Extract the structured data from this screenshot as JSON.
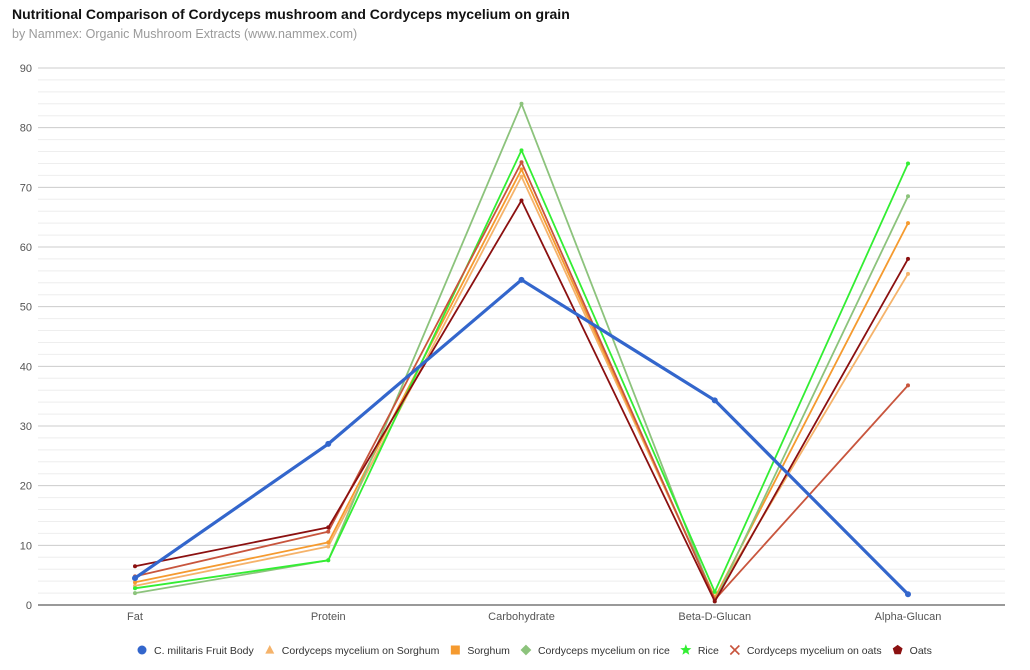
{
  "chart_data": {
    "type": "line",
    "title": "Nutritional Comparison of Cordyceps mushroom and Cordyceps mycelium on grain",
    "subtitle": "by Nammex: Organic Mushroom Extracts (www.nammex.com)",
    "xlabel": "",
    "ylabel": "",
    "ylim": [
      0,
      90
    ],
    "yticks": [
      "0",
      "10",
      "20",
      "30",
      "40",
      "50",
      "60",
      "70",
      "80",
      "90"
    ],
    "grid": true,
    "legend_position": "bottom",
    "categories": [
      "Fat",
      "Protein",
      "Carbohydrate",
      "Beta-D-Glucan",
      "Alpha-Glucan"
    ],
    "series": [
      {
        "name": "C. militaris Fruit Body",
        "color": "#3366cc",
        "marker": "circle",
        "bold": true,
        "values": [
          4.5,
          27,
          54.5,
          34.3,
          1.8
        ]
      },
      {
        "name": "Cordyceps mycelium on Sorghum",
        "color": "#f5b36b",
        "marker": "triangle",
        "bold": false,
        "values": [
          3.2,
          9.8,
          71.8,
          1.3,
          55.5
        ]
      },
      {
        "name": "Sorghum",
        "color": "#f59a2f",
        "marker": "square",
        "bold": false,
        "values": [
          3.8,
          10.5,
          73,
          1.2,
          64
        ]
      },
      {
        "name": "Cordyceps mycelium on rice",
        "color": "#8cc37c",
        "marker": "diamond",
        "bold": false,
        "values": [
          2,
          7.5,
          84,
          0.6,
          68.5
        ]
      },
      {
        "name": "Rice",
        "color": "#33ee33",
        "marker": "star",
        "bold": false,
        "values": [
          2.8,
          7.5,
          76.2,
          2.2,
          74
        ]
      },
      {
        "name": "Cordyceps mycelium on oats",
        "color": "#c8553d",
        "marker": "x",
        "bold": false,
        "values": [
          4.8,
          12.3,
          74.2,
          0.9,
          36.8
        ]
      },
      {
        "name": "Oats",
        "color": "#8b1010",
        "marker": "pentagon",
        "bold": false,
        "values": [
          6.5,
          13,
          67.8,
          0.6,
          58
        ]
      }
    ]
  }
}
